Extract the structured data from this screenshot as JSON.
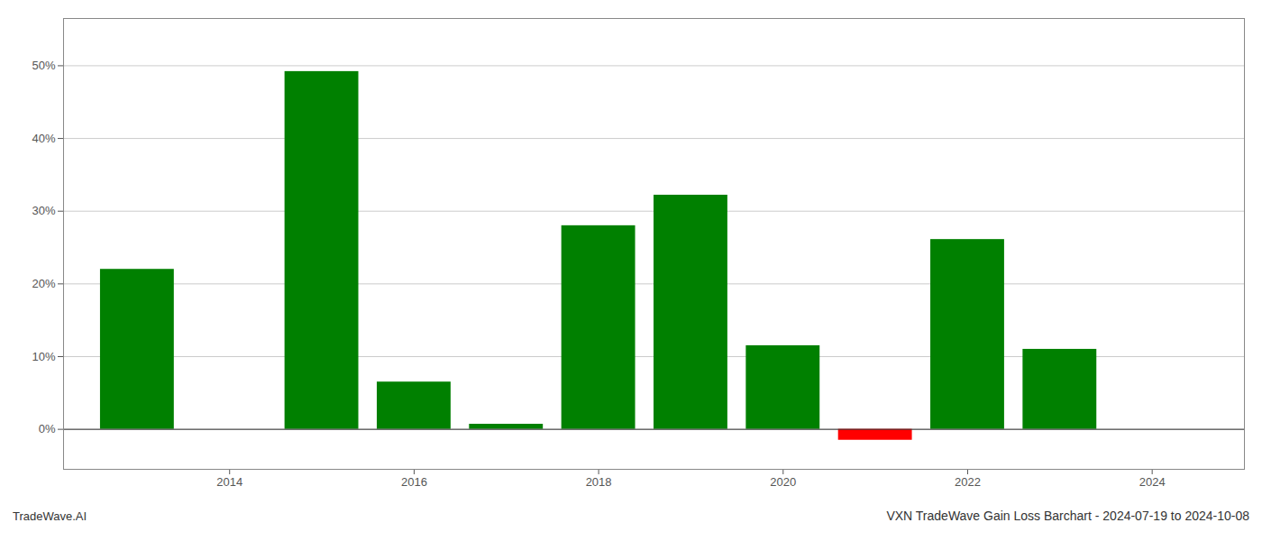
{
  "chart_data": {
    "type": "bar",
    "title": "VXN TradeWave Gain Loss Barchart - 2024-07-19 to 2024-10-08",
    "annotations": [
      "TradeWave.AI"
    ],
    "x": [
      2013,
      2015,
      2016,
      2017,
      2018,
      2019,
      2020,
      2021,
      2022,
      2023
    ],
    "values": [
      0.22,
      0.492,
      0.065,
      0.007,
      0.28,
      0.322,
      0.115,
      -0.015,
      0.261,
      0.11
    ],
    "colors": [
      "#008000",
      "#008000",
      "#008000",
      "#008000",
      "#008000",
      "#008000",
      "#008000",
      "#ff0000",
      "#008000",
      "#008000"
    ],
    "xlim": [
      2012.2,
      2025.0
    ],
    "ylim": [
      -0.055,
      0.565
    ],
    "xticks": [
      2014,
      2016,
      2018,
      2020,
      2022,
      2024
    ],
    "yticks": [
      {
        "value": 0.0,
        "label": "0%"
      },
      {
        "value": 0.1,
        "label": "10%"
      },
      {
        "value": 0.2,
        "label": "20%"
      },
      {
        "value": 0.3,
        "label": "30%"
      },
      {
        "value": 0.4,
        "label": "40%"
      },
      {
        "value": 0.5,
        "label": "50%"
      }
    ],
    "grid": true
  }
}
